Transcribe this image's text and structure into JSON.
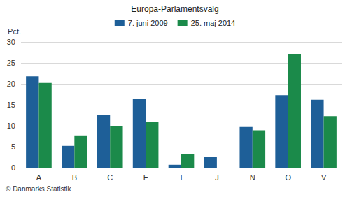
{
  "chart_data": {
    "type": "bar",
    "title": "Europa-Parlamentsvalg",
    "y_label": "Pct.",
    "footnote": "© Danmarks Statistik",
    "categories": [
      "A",
      "B",
      "C",
      "F",
      "I",
      "J",
      "N",
      "O",
      "V"
    ],
    "series": [
      {
        "name": "7. juni 2009",
        "color": "#1e5f98",
        "values": [
          21.8,
          5.2,
          12.5,
          16.5,
          0.7,
          2.5,
          9.7,
          17.3,
          16.2
        ]
      },
      {
        "name": "25. maj 2014",
        "color": "#1b8a4a",
        "values": [
          20.2,
          7.7,
          10.0,
          11.0,
          3.3,
          null,
          8.9,
          27.0,
          12.3
        ]
      }
    ],
    "ylim": [
      0,
      30
    ],
    "yticks": [
      0,
      5,
      10,
      15,
      20,
      25,
      30
    ],
    "grid": true
  }
}
